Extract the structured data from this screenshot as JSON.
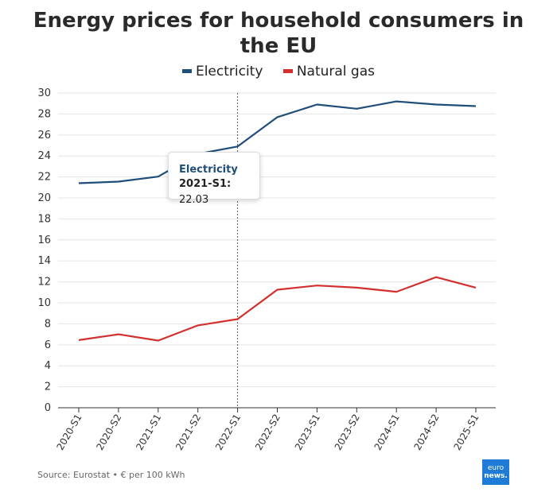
{
  "title": "Energy prices for household consumers in the EU",
  "source": "Source: Eurostat • € per 100 kWh",
  "logo": {
    "line1": "euro",
    "line2": "news."
  },
  "colors": {
    "electricity": "#1f4e79",
    "gas": "#d32f2f",
    "grid": "#e6e6e6",
    "axis": "#333333"
  },
  "tooltip": {
    "series": "Electricity",
    "key": "2021-S1:",
    "value": " 22.03"
  },
  "chart_data": {
    "type": "line",
    "title": "Energy prices for household consumers in the EU",
    "xlabel": "",
    "ylabel": "",
    "categories": [
      "2020-S1",
      "2020-S2",
      "2021-S1",
      "2021-S2",
      "2022-S1",
      "2022-S2",
      "2023-S1",
      "2023-S2",
      "2024-S1",
      "2024-S2",
      "2025-S1"
    ],
    "ylim": [
      0,
      30
    ],
    "yticks": [
      0,
      2,
      4,
      6,
      8,
      10,
      12,
      14,
      16,
      18,
      20,
      22,
      24,
      26,
      28,
      30
    ],
    "grid": true,
    "legend_position": "top-center",
    "highlight_category": "2022-S1",
    "series": [
      {
        "name": "Electricity",
        "color": "#1f4e79",
        "values": [
          21.4,
          21.55,
          22.03,
          24.2,
          24.9,
          27.7,
          28.9,
          28.5,
          29.2,
          28.9,
          28.75
        ]
      },
      {
        "name": "Natural gas",
        "color": "#d32f2f",
        "values": [
          6.45,
          7.0,
          6.4,
          7.85,
          8.45,
          11.25,
          11.65,
          11.45,
          11.05,
          12.45,
          11.45
        ]
      }
    ]
  }
}
